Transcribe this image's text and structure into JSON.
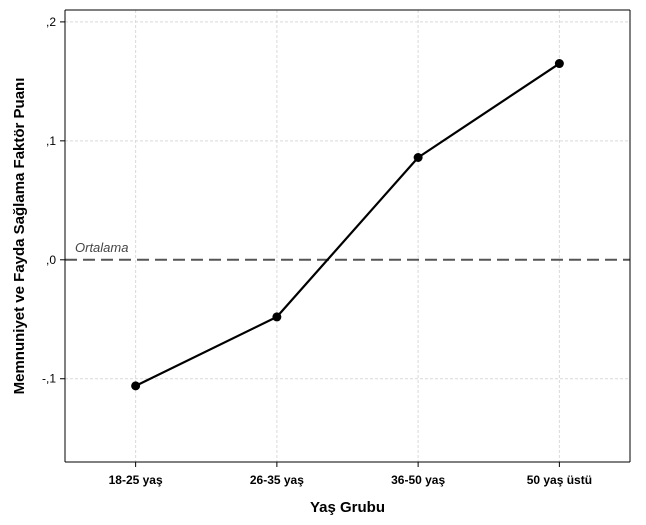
{
  "chart_data": {
    "type": "line",
    "categories": [
      "18-25 yaş",
      "26-35 yaş",
      "36-50 yaş",
      "50 yaş üstü"
    ],
    "series": [
      {
        "values": [
          -0.106,
          -0.048,
          0.086,
          0.165
        ]
      }
    ],
    "xlabel": "Yaş Grubu",
    "ylabel": "Memnuniyet ve Fayda Sağlama Faktör Puanı",
    "ylim": [
      -0.17,
      0.21
    ],
    "yticks": [
      -0.1,
      0,
      0.1,
      0.2
    ],
    "ytick_labels": [
      "-,1",
      ",0",
      ",1",
      ",2"
    ],
    "reference_line": {
      "value": 0,
      "label": "Ortalama",
      "style": "dashed"
    },
    "grid": true,
    "legend": "none",
    "colors": {
      "line": "#000000",
      "grid": "#d9d9d9",
      "reference": "#555555"
    }
  }
}
